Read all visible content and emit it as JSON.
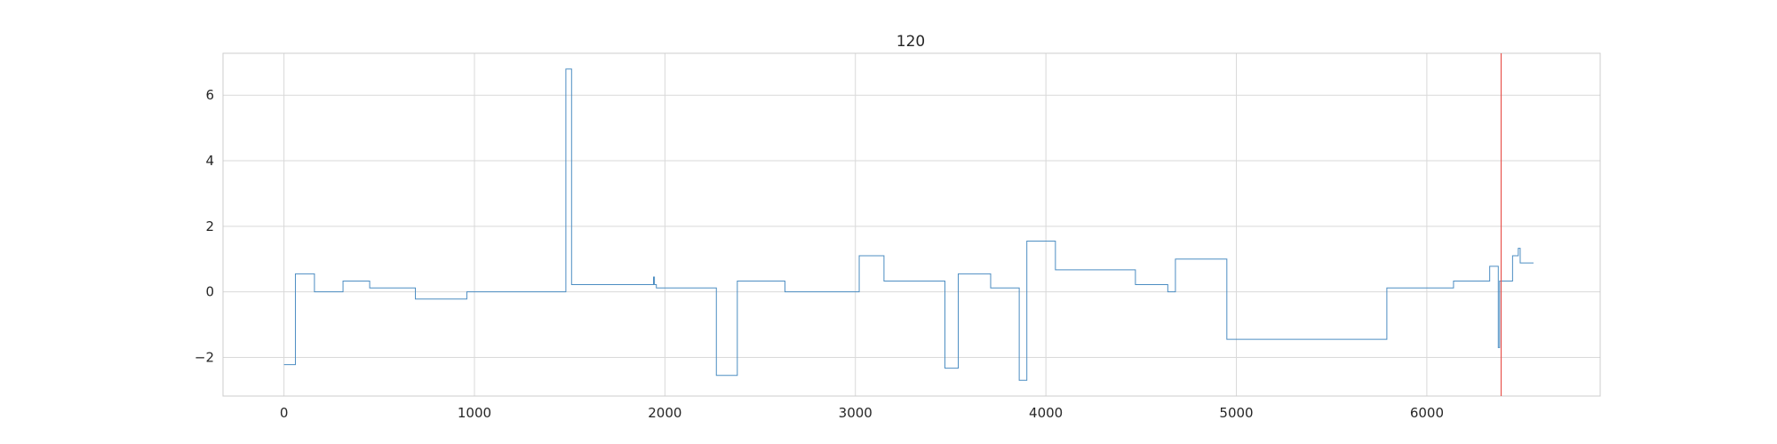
{
  "chart_data": {
    "type": "line",
    "title": "120",
    "xlabel": "",
    "ylabel": "",
    "xlim": [
      -320,
      6910
    ],
    "ylim": [
      -3.18,
      7.28
    ],
    "x_ticks": [
      0,
      1000,
      2000,
      3000,
      4000,
      5000,
      6000
    ],
    "x_tick_labels": [
      "0",
      "1000",
      "2000",
      "3000",
      "4000",
      "5000",
      "6000"
    ],
    "y_ticks": [
      -2,
      0,
      2,
      4,
      6
    ],
    "y_tick_labels": [
      "−2",
      "0",
      "2",
      "4",
      "6"
    ],
    "grid": true,
    "legend": "none",
    "vertical_marker": {
      "x": 6390,
      "color": "#e8544e"
    },
    "series": [
      {
        "color": "#4c8dc2",
        "drawstyle": "steps-post",
        "x": [
          0,
          60,
          160,
          310,
          450,
          690,
          960,
          1480,
          1510,
          1940,
          1945,
          1955,
          2270,
          2380,
          2630,
          3020,
          3150,
          3470,
          3540,
          3710,
          3860,
          3900,
          3930,
          4050,
          4470,
          4640,
          4680,
          4950,
          5790,
          6140,
          6330,
          6375,
          6382,
          6390,
          6450,
          6480,
          6490,
          6560
        ],
        "y": [
          -2.22,
          0.55,
          0.0,
          0.33,
          0.12,
          -0.22,
          0.0,
          6.8,
          0.22,
          0.45,
          0.22,
          0.12,
          -2.55,
          0.33,
          0.0,
          1.1,
          0.33,
          -2.33,
          0.55,
          0.12,
          -2.7,
          1.55,
          1.55,
          0.67,
          0.22,
          0.0,
          1.0,
          -1.45,
          0.12,
          0.33,
          0.78,
          -1.7,
          0.33,
          0.33,
          1.1,
          1.33,
          0.88,
          0.88
        ]
      }
    ]
  }
}
